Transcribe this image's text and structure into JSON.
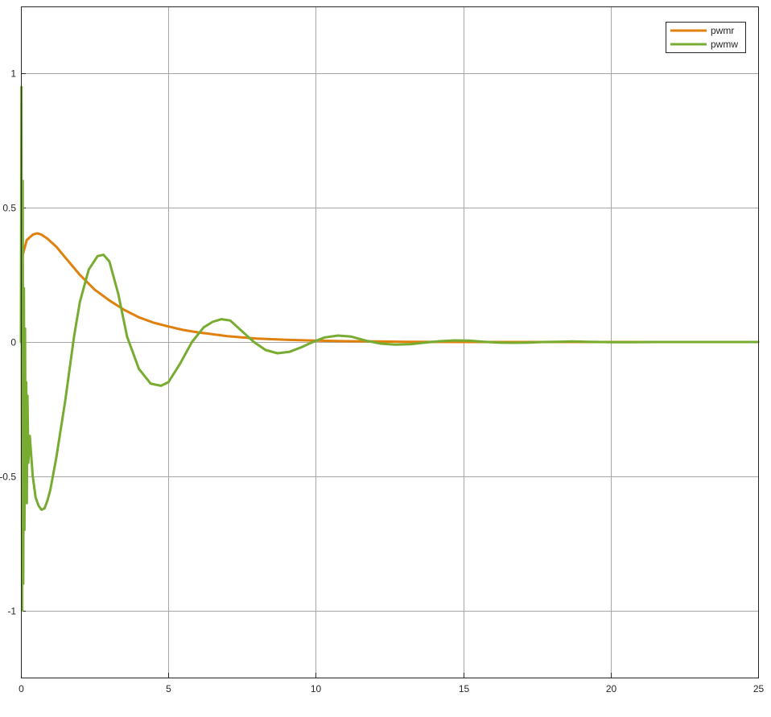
{
  "chart_data": {
    "type": "line",
    "title": "",
    "xlabel": "",
    "ylabel": "",
    "xlim": [
      0,
      25
    ],
    "ylim": [
      -1.25,
      1.25
    ],
    "xticks": [
      0,
      5,
      10,
      15,
      20,
      25
    ],
    "yticks": [
      -1,
      -0.5,
      0,
      0.5,
      1
    ],
    "xtick_labels": [
      "0",
      "5",
      "10",
      "15",
      "20",
      "25"
    ],
    "ytick_labels": [
      "-1",
      "-0.5",
      "0",
      "0.5",
      "1"
    ],
    "grid": true,
    "legend_position": "top-right",
    "series": [
      {
        "name": "pwmr",
        "color": "#e0800d",
        "x": [
          0.05,
          0.2,
          0.4,
          0.55,
          0.7,
          0.9,
          1.2,
          1.5,
          2.0,
          2.5,
          3.0,
          3.5,
          4.0,
          4.5,
          5.0,
          5.5,
          6.0,
          7.0,
          8.0,
          9.0,
          10.0,
          11.0,
          12.0,
          13.0,
          15.0,
          18.0,
          21.0,
          25.0
        ],
        "y": [
          0.32,
          0.38,
          0.4,
          0.405,
          0.4,
          0.385,
          0.355,
          0.315,
          0.25,
          0.195,
          0.155,
          0.12,
          0.092,
          0.072,
          0.058,
          0.045,
          0.036,
          0.022,
          0.013,
          0.008,
          0.005,
          0.003,
          0.002,
          0.001,
          0.0,
          0.0,
          0.0,
          0.0
        ]
      },
      {
        "name": "pwmw",
        "color": "#77ac30",
        "x": [
          0.0,
          0.02,
          0.04,
          0.06,
          0.08,
          0.1,
          0.12,
          0.14,
          0.16,
          0.18,
          0.2,
          0.22,
          0.25,
          0.3,
          0.4,
          0.5,
          0.6,
          0.7,
          0.8,
          0.9,
          1.0,
          1.2,
          1.5,
          1.8,
          2.0,
          2.3,
          2.6,
          2.8,
          3.0,
          3.3,
          3.6,
          4.0,
          4.4,
          4.75,
          5.0,
          5.4,
          5.8,
          6.2,
          6.5,
          6.8,
          7.1,
          7.5,
          7.9,
          8.3,
          8.7,
          9.1,
          9.5,
          9.9,
          10.3,
          10.75,
          11.2,
          11.7,
          12.2,
          12.7,
          13.2,
          13.7,
          14.2,
          14.7,
          15.2,
          15.7,
          16.2,
          16.7,
          17.2,
          17.7,
          18.2,
          18.7,
          19.2,
          19.7,
          20.2,
          20.7,
          21.5,
          22.5,
          23.5,
          24.5,
          25.0
        ],
        "y": [
          0.0,
          0.95,
          -1.0,
          0.6,
          -0.9,
          0.2,
          -0.7,
          0.05,
          -0.55,
          -0.15,
          -0.6,
          -0.2,
          -0.45,
          -0.35,
          -0.5,
          -0.58,
          -0.61,
          -0.625,
          -0.62,
          -0.59,
          -0.55,
          -0.43,
          -0.22,
          0.02,
          0.15,
          0.27,
          0.32,
          0.325,
          0.3,
          0.18,
          0.02,
          -0.1,
          -0.155,
          -0.163,
          -0.15,
          -0.08,
          0.0,
          0.055,
          0.075,
          0.085,
          0.08,
          0.04,
          0.0,
          -0.03,
          -0.042,
          -0.037,
          -0.02,
          0.0,
          0.017,
          0.024,
          0.02,
          0.005,
          -0.006,
          -0.01,
          -0.008,
          -0.002,
          0.003,
          0.006,
          0.005,
          0.001,
          -0.002,
          -0.003,
          -0.002,
          0.0,
          0.001,
          0.002,
          0.001,
          0.0,
          -0.001,
          -0.001,
          0.0,
          0.0,
          0.0,
          0.0,
          0.0
        ]
      }
    ]
  }
}
